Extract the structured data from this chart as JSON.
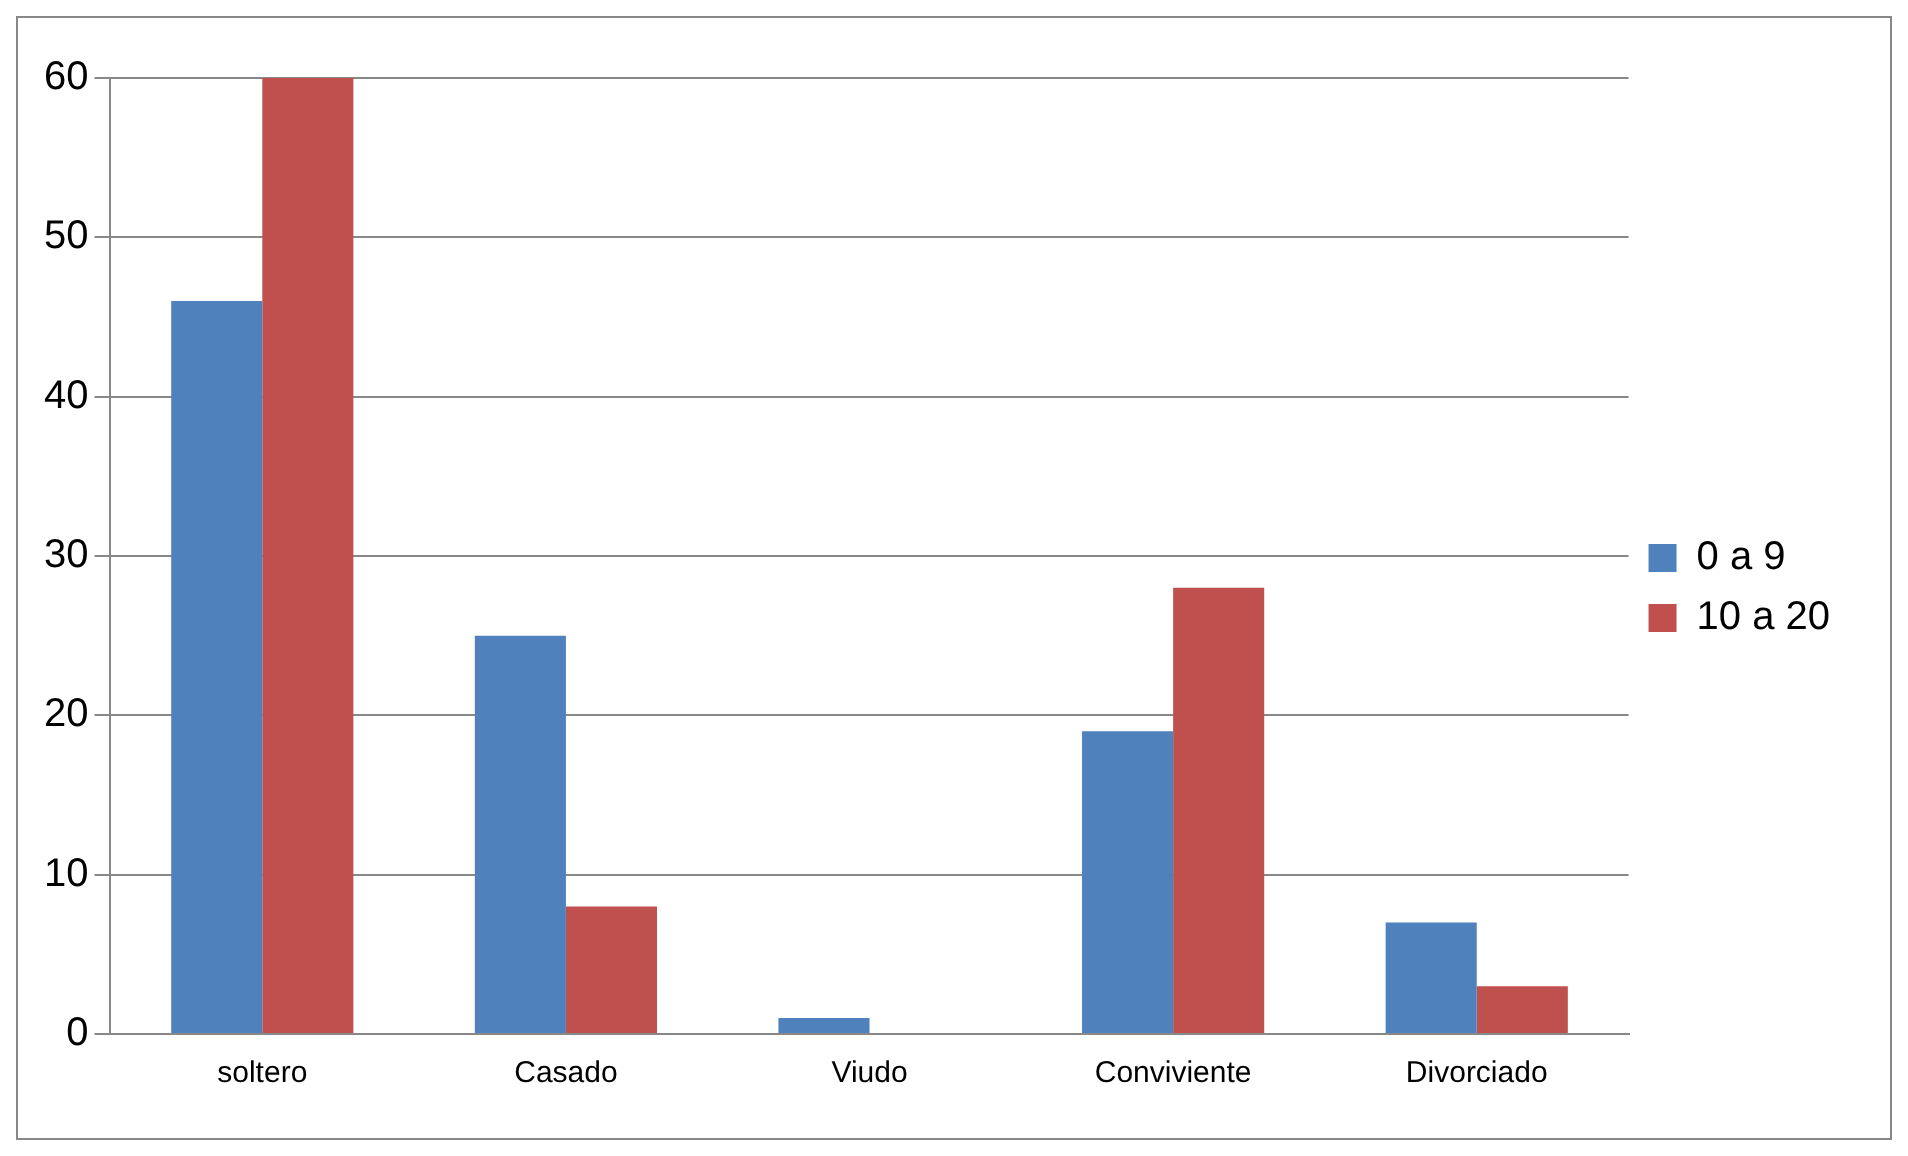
{
  "chart_data": {
    "type": "bar",
    "categories": [
      "soltero",
      "Casado",
      "Viudo",
      "Conviviente",
      "Divorciado"
    ],
    "series": [
      {
        "name": "0 a 9",
        "color": "#4f81bd",
        "values": [
          46,
          25,
          1,
          19,
          7
        ]
      },
      {
        "name": "10 a 20",
        "color": "#c0504d",
        "values": [
          60,
          8,
          0,
          28,
          3
        ]
      }
    ],
    "ylim": [
      0,
      60
    ],
    "yticks": [
      0,
      10,
      20,
      30,
      40,
      50,
      60
    ],
    "grid": "y",
    "legend": "right"
  }
}
